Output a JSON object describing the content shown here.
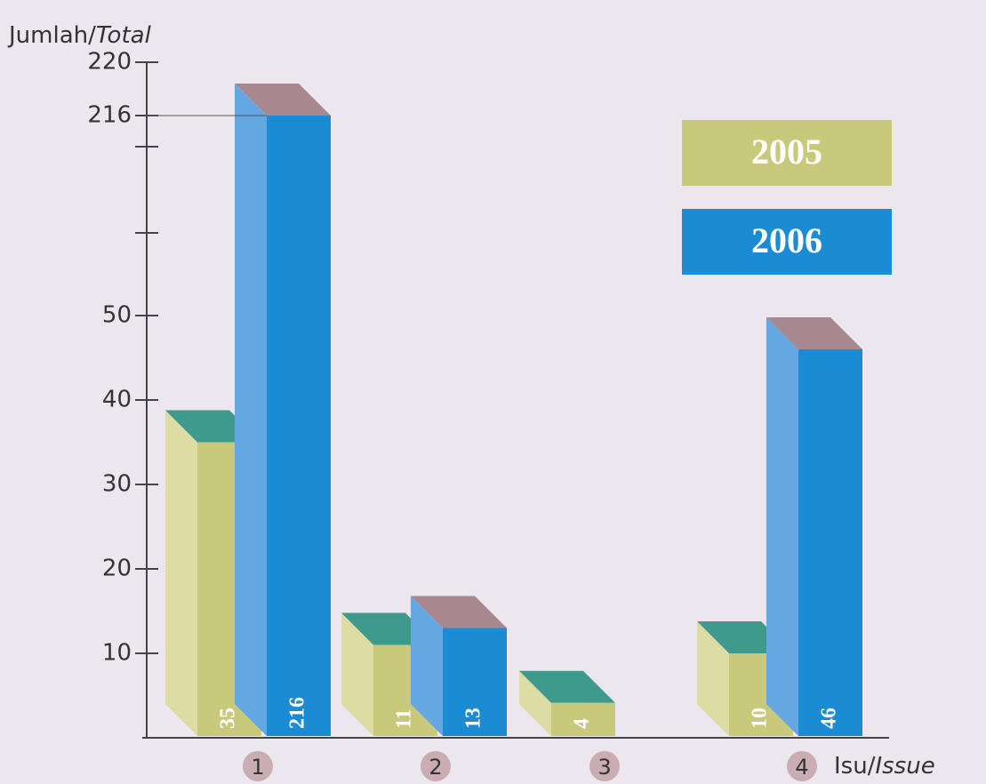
{
  "chart_data": {
    "type": "bar3d",
    "y_label": {
      "main": "Jumlah/",
      "italic": "Total"
    },
    "x_label": {
      "main": "Isu/",
      "italic": "Issue"
    },
    "categories": [
      "1",
      "2",
      "3",
      "4"
    ],
    "series": [
      {
        "name": "2005",
        "color": "#c9c97c",
        "values": [
          35,
          11,
          4,
          10
        ]
      },
      {
        "name": "2006",
        "color": "#1b8bd4",
        "values": [
          216,
          13,
          null,
          46
        ]
      }
    ],
    "ylim": [
      0,
      220
    ],
    "yticks": [
      10,
      20,
      30,
      40,
      50,
      216,
      220
    ]
  }
}
